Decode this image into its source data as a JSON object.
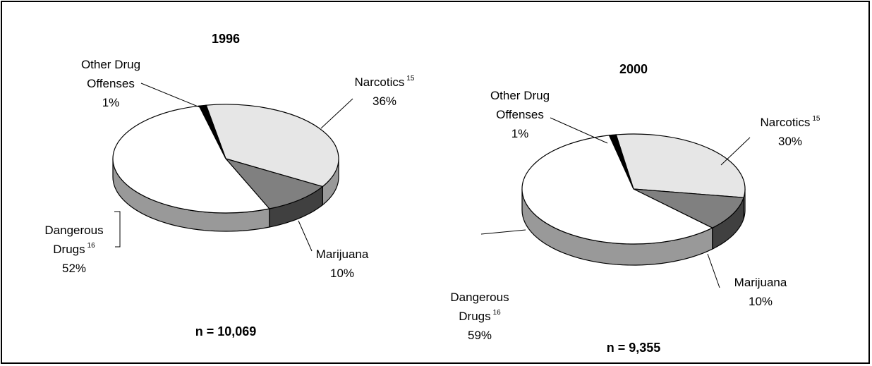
{
  "chart_data": [
    {
      "type": "pie",
      "title": "1996",
      "categories": [
        "Narcotics",
        "Marijuana",
        "Dangerous Drugs",
        "Other Drug Offenses"
      ],
      "footnotes": [
        "15",
        null,
        "16",
        null
      ],
      "values": [
        36,
        10,
        52,
        1
      ],
      "value_labels": [
        "36%",
        "10%",
        "52%",
        "1%"
      ],
      "colors": [
        "#e6e6e6",
        "#808080",
        "#ffffff",
        "#000000"
      ],
      "annotation": "n = 10,069"
    },
    {
      "type": "pie",
      "title": "2000",
      "categories": [
        "Narcotics",
        "Marijuana",
        "Dangerous Drugs",
        "Other Drug Offenses"
      ],
      "footnotes": [
        "15",
        null,
        "16",
        null
      ],
      "values": [
        30,
        10,
        59,
        1
      ],
      "value_labels": [
        "30%",
        "10%",
        "59%",
        "1%"
      ],
      "colors": [
        "#e6e6e6",
        "#808080",
        "#ffffff",
        "#000000"
      ],
      "annotation": "n = 9,355"
    }
  ]
}
